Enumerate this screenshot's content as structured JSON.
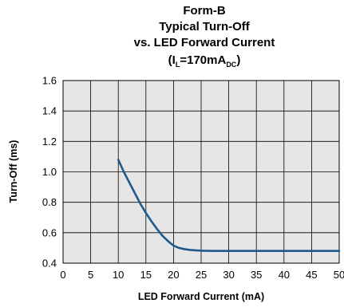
{
  "chart_data": {
    "type": "line",
    "title_lines": [
      "Form-B",
      "Typical Turn-Off",
      "vs. LED Forward Current"
    ],
    "title_condition": {
      "prefix": "(I",
      "sub1": "L",
      "mid": "=170mA",
      "sub2": "DC",
      "suffix": ")"
    },
    "xlabel": "LED Forward Current (mA)",
    "ylabel": "Turn-Off (ms)",
    "xlim": [
      0,
      50
    ],
    "ylim": [
      0.4,
      1.6
    ],
    "x_ticks": [
      "0",
      "5",
      "10",
      "15",
      "20",
      "25",
      "30",
      "35",
      "40",
      "45",
      "50"
    ],
    "y_ticks": [
      "0.4",
      "0.6",
      "0.8",
      "1.0",
      "1.2",
      "1.4",
      "1.6"
    ],
    "grid": true,
    "series": [
      {
        "color": "#1f5a8c",
        "x": [
          10,
          11,
          12,
          13,
          14,
          15,
          16,
          17,
          18,
          19,
          20,
          21,
          22,
          23,
          24,
          25,
          26,
          28,
          30,
          35,
          40,
          45,
          50
        ],
        "y": [
          1.08,
          1.0,
          0.93,
          0.86,
          0.79,
          0.73,
          0.675,
          0.625,
          0.58,
          0.545,
          0.515,
          0.5,
          0.492,
          0.487,
          0.484,
          0.482,
          0.481,
          0.48,
          0.48,
          0.48,
          0.48,
          0.48,
          0.48
        ]
      }
    ]
  }
}
